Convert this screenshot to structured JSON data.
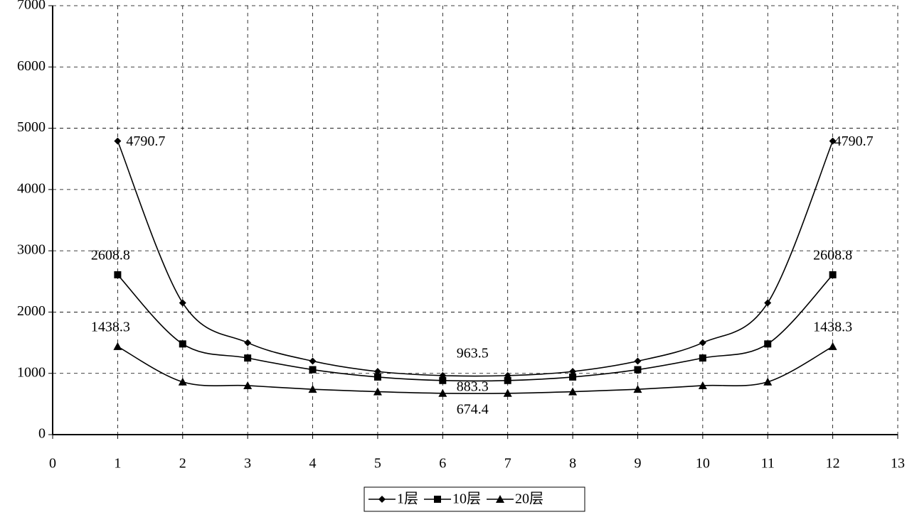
{
  "chart_data": {
    "type": "line",
    "x": [
      1,
      2,
      3,
      4,
      5,
      6,
      7,
      8,
      9,
      10,
      11,
      12
    ],
    "series": [
      {
        "name": "1层",
        "color": "#000000",
        "marker": "diamond",
        "values": [
          4790.7,
          2150,
          1500,
          1200,
          1030,
          963.5,
          963.5,
          1030,
          1200,
          1500,
          2150,
          4790.7
        ],
        "value_labels": [
          "4790.7",
          null,
          null,
          null,
          null,
          "963.5",
          null,
          null,
          null,
          null,
          null,
          "4790.7"
        ]
      },
      {
        "name": "10层",
        "color": "#000000",
        "marker": "square",
        "values": [
          2608.8,
          1480,
          1250,
          1060,
          940,
          883.3,
          883.3,
          940,
          1060,
          1250,
          1480,
          2608.8
        ],
        "value_labels": [
          "2608.8",
          null,
          null,
          null,
          null,
          "883.3",
          null,
          null,
          null,
          null,
          null,
          "2608.8"
        ]
      },
      {
        "name": "20层",
        "color": "#000000",
        "marker": "triangle",
        "values": [
          1438.3,
          860,
          800,
          740,
          700,
          674.4,
          674.4,
          700,
          740,
          800,
          860,
          1438.3
        ],
        "value_labels": [
          "1438.3",
          null,
          null,
          null,
          null,
          "674.4",
          null,
          null,
          null,
          null,
          null,
          "1438.3"
        ]
      }
    ],
    "xlim": [
      0,
      13
    ],
    "xticks": [
      0,
      1,
      2,
      3,
      4,
      5,
      6,
      7,
      8,
      9,
      10,
      11,
      12,
      13
    ],
    "ylim": [
      0,
      7000
    ],
    "yticks": [
      0,
      1000,
      2000,
      3000,
      4000,
      5000,
      6000,
      7000
    ],
    "grid": true,
    "smooth": true,
    "legend": "bottom"
  }
}
